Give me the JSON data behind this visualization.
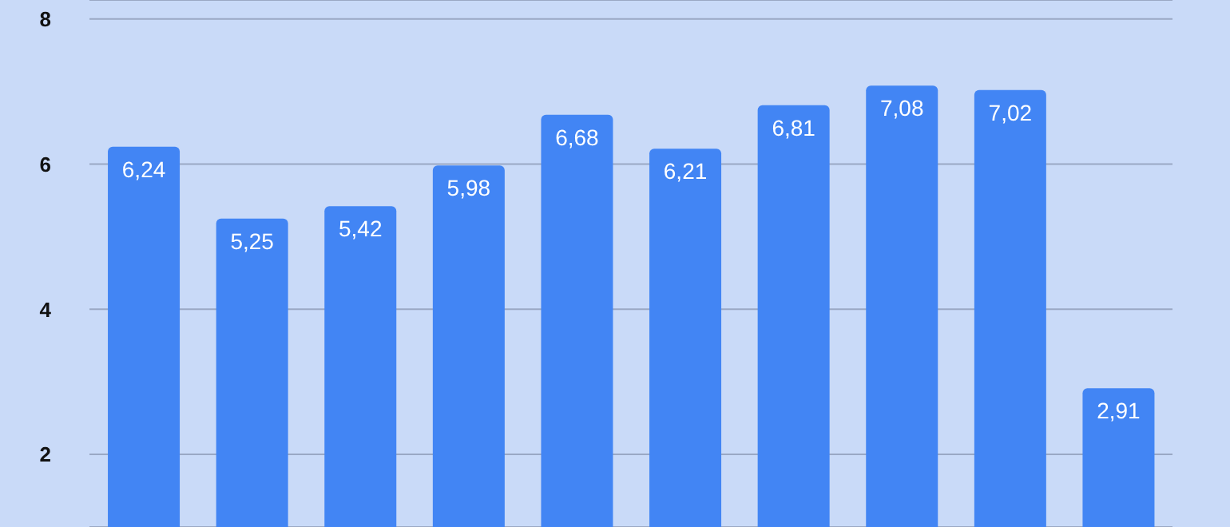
{
  "chart_data": {
    "type": "bar",
    "categories": [
      null,
      null,
      null,
      null,
      null,
      null,
      null,
      null,
      null,
      null
    ],
    "values": [
      6.24,
      5.25,
      5.42,
      5.98,
      6.68,
      6.21,
      6.81,
      7.08,
      7.02,
      2.91
    ],
    "value_labels": [
      "6,24",
      "5,25",
      "5,42",
      "5,98",
      "6,68",
      "6,21",
      "6,81",
      "7,08",
      "7,02",
      "2,91"
    ],
    "color": "#4285f4",
    "ylim": [
      1,
      8.26
    ],
    "yticks": [
      2,
      4,
      6,
      8
    ],
    "grid": "y"
  }
}
